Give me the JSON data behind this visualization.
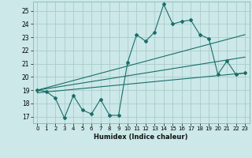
{
  "xlabel": "Humidex (Indice chaleur)",
  "bg_color": "#cce8e8",
  "grid_color": "#aacccc",
  "line_color": "#1a6e6a",
  "xlim": [
    -0.5,
    23.5
  ],
  "ylim": [
    16.5,
    25.7
  ],
  "yticks": [
    17,
    18,
    19,
    20,
    21,
    22,
    23,
    24,
    25
  ],
  "xticks": [
    0,
    1,
    2,
    3,
    4,
    5,
    6,
    7,
    8,
    9,
    10,
    11,
    12,
    13,
    14,
    15,
    16,
    17,
    18,
    19,
    20,
    21,
    22,
    23
  ],
  "main_line_x": [
    0,
    1,
    2,
    3,
    4,
    5,
    6,
    7,
    8,
    9,
    10,
    11,
    12,
    13,
    14,
    15,
    16,
    17,
    18,
    19,
    20,
    21,
    22,
    23
  ],
  "main_line_y": [
    19.0,
    18.9,
    18.4,
    16.9,
    18.6,
    17.5,
    17.2,
    18.3,
    17.1,
    17.1,
    21.1,
    23.2,
    22.7,
    23.4,
    25.5,
    24.0,
    24.2,
    24.3,
    23.2,
    22.9,
    20.2,
    21.2,
    20.2,
    20.3
  ],
  "trend1_x": [
    0,
    23
  ],
  "trend1_y": [
    19.0,
    23.2
  ],
  "trend2_x": [
    0,
    23
  ],
  "trend2_y": [
    19.0,
    21.5
  ],
  "trend3_x": [
    0,
    23
  ],
  "trend3_y": [
    18.8,
    20.3
  ]
}
